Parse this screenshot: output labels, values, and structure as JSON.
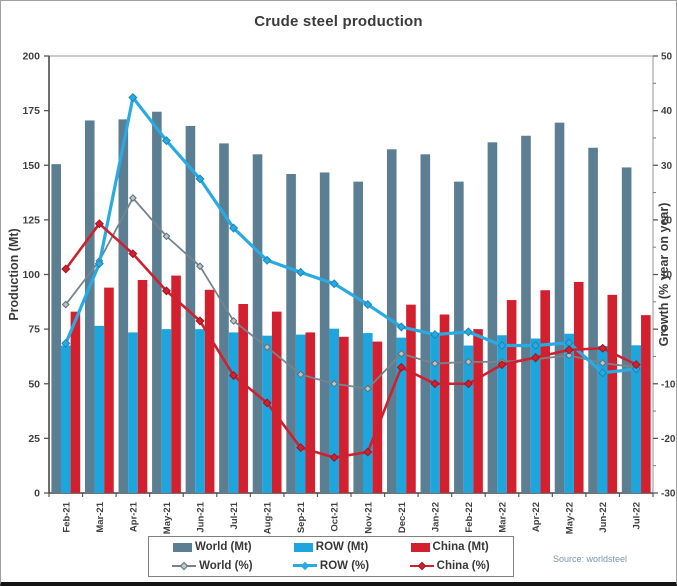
{
  "window": {
    "title": "Crude steel production",
    "source": "Source: worldsteel"
  },
  "chart_data": {
    "type": "bar+line",
    "title": "Crude steel production",
    "ylabel_left": "Production (Mt)",
    "ylabel_right": "Growth (% year on year)",
    "y_left": {
      "min": 0,
      "max": 200,
      "step": 25
    },
    "y_right": {
      "min": -30,
      "max": 50,
      "step": 10,
      "minor_step": 5
    },
    "grid": false,
    "legend_position": "bottom",
    "categories": [
      "Feb-21",
      "Mar-21",
      "Apr-21",
      "May-21",
      "Jun-21",
      "Jul-21",
      "Aug-21",
      "Sep-21",
      "Oct-21",
      "Nov-21",
      "Dec-21",
      "Jan-22",
      "Feb-22",
      "Mar-22",
      "Apr-22",
      "May-22",
      "Jun-22",
      "Jul-22"
    ],
    "bar_series": [
      {
        "name": "World (Mt)",
        "color": "#5b7e92",
        "axis": "left",
        "values": [
          150.5,
          170.5,
          171,
          174.5,
          168,
          160,
          155,
          146,
          146.7,
          142.5,
          157.3,
          155,
          142.5,
          160.5,
          163.5,
          169.5,
          158,
          149
        ]
      },
      {
        "name": "ROW (Mt)",
        "color": "#1ca6dd",
        "axis": "left",
        "values": [
          67.5,
          76.5,
          73.5,
          75,
          75,
          73.5,
          72,
          72.5,
          75.2,
          73.2,
          71.1,
          73.3,
          67.5,
          72.2,
          70.7,
          72.9,
          67.3,
          67.6
        ]
      },
      {
        "name": "China (Mt)",
        "color": "#d2202e",
        "axis": "left",
        "values": [
          83,
          94,
          97.5,
          99.5,
          93,
          86.5,
          83,
          73.5,
          71.5,
          69.3,
          86.2,
          81.7,
          75,
          88.3,
          92.8,
          96.6,
          90.7,
          81.4
        ]
      }
    ],
    "line_series": [
      {
        "name": "World (%)",
        "color": "#76848e",
        "marker_fill": "#b9c4cb",
        "marker_stroke": "#5f6e78",
        "width": 1.8,
        "marker_r": 3.2,
        "axis": "right",
        "values": [
          4.5,
          12.5,
          24,
          17,
          11.5,
          1.5,
          -3.3,
          -8.3,
          -10,
          -10.9,
          -4.5,
          -6.3,
          -6,
          -6,
          -5.5,
          -4.8,
          -6.2,
          -7
        ]
      },
      {
        "name": "ROW (%)",
        "color": "#29abe2",
        "marker_fill": "#29abe2",
        "marker_stroke": "#1786bb",
        "width": 3.2,
        "marker_r": 3.8,
        "axis": "right",
        "values": [
          -2.6,
          12,
          42.4,
          34.5,
          27.5,
          18.5,
          12.6,
          10.4,
          8.3,
          4.5,
          0.4,
          -1,
          -0.5,
          -3,
          -3,
          -2.5,
          -8,
          -7.3
        ]
      },
      {
        "name": "China (%)",
        "color": "#cf2030",
        "marker_fill": "#d2202e",
        "marker_stroke": "#9e1520",
        "width": 2.6,
        "marker_r": 3.8,
        "axis": "right",
        "values": [
          11,
          19.3,
          13.8,
          7,
          1.5,
          -8.5,
          -13.5,
          -21.7,
          -23.5,
          -22.5,
          -7,
          -10,
          -10,
          -6.5,
          -5.2,
          -3.8,
          -3.5,
          -6.5
        ]
      }
    ]
  }
}
